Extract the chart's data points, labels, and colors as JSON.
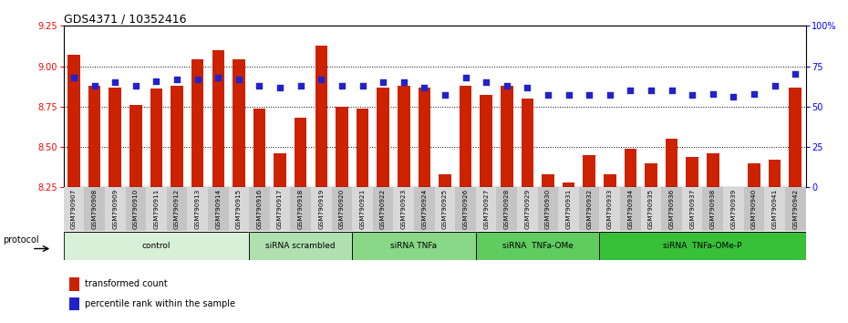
{
  "title": "GDS4371 / 10352416",
  "samples": [
    "GSM790907",
    "GSM790908",
    "GSM790909",
    "GSM790910",
    "GSM790911",
    "GSM790912",
    "GSM790913",
    "GSM790914",
    "GSM790915",
    "GSM790916",
    "GSM790917",
    "GSM790918",
    "GSM790919",
    "GSM790920",
    "GSM790921",
    "GSM790922",
    "GSM790923",
    "GSM790924",
    "GSM790925",
    "GSM790926",
    "GSM790927",
    "GSM790928",
    "GSM790929",
    "GSM790930",
    "GSM790931",
    "GSM790932",
    "GSM790933",
    "GSM790934",
    "GSM790935",
    "GSM790936",
    "GSM790937",
    "GSM790938",
    "GSM790939",
    "GSM790940",
    "GSM790941",
    "GSM790942"
  ],
  "bar_values": [
    9.07,
    8.88,
    8.87,
    8.76,
    8.86,
    8.88,
    9.04,
    9.1,
    9.04,
    8.74,
    8.46,
    8.68,
    9.13,
    8.75,
    8.74,
    8.87,
    8.88,
    8.87,
    8.33,
    8.88,
    8.82,
    8.88,
    8.8,
    8.33,
    8.28,
    8.45,
    8.33,
    8.49,
    8.4,
    8.55,
    8.44,
    8.46,
    8.25,
    8.4,
    8.42,
    8.87
  ],
  "percentile_values": [
    68,
    63,
    65,
    63,
    66,
    67,
    67,
    68,
    67,
    63,
    62,
    63,
    67,
    63,
    63,
    65,
    65,
    62,
    57,
    68,
    65,
    63,
    62,
    57,
    57,
    57,
    57,
    60,
    60,
    60,
    57,
    58,
    56,
    58,
    63,
    70
  ],
  "groups": [
    {
      "label": "control",
      "start": 0,
      "end": 9,
      "color": "#d8f0d8"
    },
    {
      "label": "siRNA scrambled",
      "start": 9,
      "end": 14,
      "color": "#b0e0b0"
    },
    {
      "label": "siRNA TNFa",
      "start": 14,
      "end": 20,
      "color": "#88d888"
    },
    {
      "label": "siRNA  TNFa-OMe",
      "start": 20,
      "end": 26,
      "color": "#60cc60"
    },
    {
      "label": "siRNA  TNFa-OMe-P",
      "start": 26,
      "end": 36,
      "color": "#38c038"
    }
  ],
  "ylim_left": [
    8.25,
    9.25
  ],
  "ylim_right": [
    0,
    100
  ],
  "bar_color": "#cc2200",
  "dot_color": "#2222cc",
  "bar_bottom": 8.25,
  "yticks_left": [
    8.25,
    8.5,
    8.75,
    9.0,
    9.25
  ],
  "yticks_right": [
    0,
    25,
    50,
    75,
    100
  ],
  "ytick_labels_right": [
    "0",
    "25",
    "50",
    "75",
    "100%"
  ],
  "grid_lines": [
    9.0,
    8.75,
    8.5
  ],
  "xtick_bg_even": "#d8d8d8",
  "xtick_bg_odd": "#c4c4c4"
}
